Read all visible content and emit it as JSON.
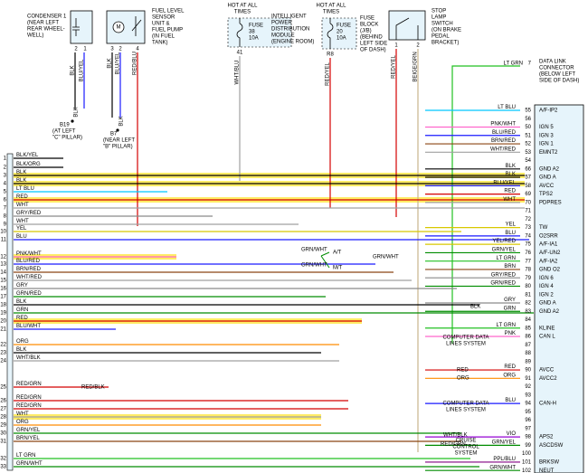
{
  "components": [
    {
      "name": [
        "CONDENSER 1",
        "(NEAR LEFT",
        "REAR WHEEL-",
        "WELL)"
      ],
      "pins": [
        "2",
        "1"
      ],
      "wires": [
        "BLK",
        "BLU/YEL"
      ]
    },
    {
      "name": [
        "FUEL LEVEL",
        "SENSOR",
        "UNIT &",
        "FUEL PUMP",
        "(IN FUEL",
        "TANK)"
      ],
      "symbol": "M",
      "pins": [
        "3",
        "2",
        "4"
      ],
      "wires": [
        "BLK",
        "BLU/YEL",
        "RED/BLU"
      ]
    },
    {
      "supply": [
        "HOT AT ALL",
        "TIMES"
      ],
      "fuse": [
        "FUSE",
        "38",
        "10A"
      ],
      "name": [
        "INTELLIGENT",
        "POWER",
        "DISTRIBUTION",
        "MODULE",
        "(ENGINE ROOM)"
      ],
      "pins": [
        "41"
      ],
      "wires": [
        "WHT/BLU"
      ]
    },
    {
      "supply": [
        "HOT AT ALL",
        "TIMES"
      ],
      "fuse": [
        "FUSE",
        "20",
        "10A"
      ],
      "name": [
        "FUSE",
        "BLOCK",
        "(J/B)",
        "(BEHIND",
        "LEFT SIDE",
        "OF DASH)"
      ],
      "pins": [
        "R8"
      ],
      "wires": [
        "RED/YEL"
      ]
    },
    {
      "name": [
        "STOP",
        "LAMP",
        "SWITCH",
        "(ON BRAKE",
        "PEDAL",
        "BRACKET)"
      ],
      "pins": [
        "1",
        "2"
      ],
      "wires": [
        "RED/YEL",
        "BEIGE/GRN"
      ]
    },
    {
      "name": [
        "DATA LINK",
        "CONNECTOR",
        "(BELOW LEFT",
        "SIDE OF DASH)"
      ],
      "pins": [
        "7"
      ],
      "wires": [
        "LT GRN"
      ]
    }
  ],
  "grounds": [
    {
      "id": "B19",
      "wire": "BLK",
      "location": [
        "(AT LEFT",
        "\"C\" PILLAR)"
      ]
    },
    {
      "id": "B7",
      "wire": "BLK",
      "location": [
        "(NEAR LEFT",
        "\"B\" PILLAR)"
      ]
    }
  ],
  "left_pins": [
    {
      "num": "1",
      "wire": "BLK/YEL"
    },
    {
      "num": "2",
      "wire": "BLK/ORG"
    },
    {
      "num": "3",
      "wire": "BLK"
    },
    {
      "num": "4",
      "wire": "BLK"
    },
    {
      "num": "5",
      "wire": "LT BLU"
    },
    {
      "num": "6",
      "wire": "RED"
    },
    {
      "num": "7",
      "wire": "WHT"
    },
    {
      "num": "8",
      "wire": "GRY/RED"
    },
    {
      "num": "9",
      "wire": "WHT"
    },
    {
      "num": "10",
      "wire": "YEL"
    },
    {
      "num": "11",
      "wire": "BLU"
    },
    {
      "num": "12",
      "wire": "PNK/WHT"
    },
    {
      "num": "13",
      "wire": "BLU/RED"
    },
    {
      "num": "14",
      "wire": "BRN/RED"
    },
    {
      "num": "15",
      "wire": "WHT/RED"
    },
    {
      "num": "16",
      "wire": "GRY"
    },
    {
      "num": "17",
      "wire": "GRN/RED"
    },
    {
      "num": "18",
      "wire": "BLK"
    },
    {
      "num": "19",
      "wire": "GRN"
    },
    {
      "num": "20",
      "wire": "RED"
    },
    {
      "num": "21",
      "wire": "BLU/WHT"
    },
    {
      "num": "22",
      "wire": "ORG"
    },
    {
      "num": "23",
      "wire": "BLK"
    },
    {
      "num": "24",
      "wire": "WHT/BLK"
    },
    {
      "num": "25",
      "wire": "RED/GRN"
    },
    {
      "num": "26",
      "wire": "RED/GRN"
    },
    {
      "num": "27",
      "wire": "RED/GRN"
    },
    {
      "num": "28",
      "wire": "WHT"
    },
    {
      "num": "29",
      "wire": "ORG"
    },
    {
      "num": "30",
      "wire": "GRN/YEL"
    },
    {
      "num": "31",
      "wire": "BRN/YEL"
    },
    {
      "num": "32",
      "wire": "LT GRN"
    },
    {
      "num": "33",
      "wire": "GRN/WHT"
    }
  ],
  "right_pins": [
    {
      "num": "55",
      "wire": "LT BLU",
      "func": "A/F-IP2"
    },
    {
      "num": "56"
    },
    {
      "num": "50",
      "wire": "PNK/WHT",
      "func": "IGN 5"
    },
    {
      "num": "51",
      "wire": "BLU/RED",
      "func": "IGN 3"
    },
    {
      "num": "52",
      "wire": "BRN/RED",
      "func": "IGN 1"
    },
    {
      "num": "53",
      "wire": "WHT/RED",
      "func": "EMNT2"
    },
    {
      "num": "54"
    },
    {
      "num": "66",
      "wire": "BLK",
      "func": "GND A2"
    },
    {
      "num": "57",
      "wire": "BLK",
      "func": "GND A"
    },
    {
      "num": "58",
      "wire": "BLU/YEL",
      "func": "AVCC"
    },
    {
      "num": "69",
      "wire": "RED",
      "func": "TPS2"
    },
    {
      "num": "70",
      "wire": "WHT",
      "func": "PDPRES"
    },
    {
      "num": "71"
    },
    {
      "num": "72"
    },
    {
      "num": "73",
      "wire": "YEL",
      "func": "TW"
    },
    {
      "num": "74",
      "wire": "BLU",
      "func": "O2SRR"
    },
    {
      "num": "75",
      "wire": "YEL/RED",
      "func": "A/F-IA1"
    },
    {
      "num": "76",
      "wire": "GRN/YEL",
      "func": "A/F-UN2"
    },
    {
      "num": "77",
      "wire": "LT GRN",
      "func": "A/F-IA2"
    },
    {
      "num": "78",
      "wire": "BRN",
      "func": "GND O2"
    },
    {
      "num": "79",
      "wire": "GRY/RED",
      "func": "IGN 6"
    },
    {
      "num": "80",
      "wire": "GRN/RED",
      "func": "IGN 4"
    },
    {
      "num": "81",
      "func": "IGN 2"
    },
    {
      "num": "82",
      "wire": "GRY",
      "func": "GND A"
    },
    {
      "num": "83",
      "wire": "GRN",
      "func": "GND A2"
    },
    {
      "num": "84"
    },
    {
      "num": "85",
      "wire": "LT GRN",
      "func": "KLINE"
    },
    {
      "num": "86",
      "wire": "PNK",
      "func": "CAN L"
    },
    {
      "num": "87"
    },
    {
      "num": "88"
    },
    {
      "num": "89"
    },
    {
      "num": "90",
      "wire": "RED",
      "func": "AVCC"
    },
    {
      "num": "91",
      "wire": "ORG",
      "func": "AVCC2"
    },
    {
      "num": "92"
    },
    {
      "num": "93"
    },
    {
      "num": "94",
      "wire": "BLU",
      "func": "CAN-H"
    },
    {
      "num": "95"
    },
    {
      "num": "96"
    },
    {
      "num": "97"
    },
    {
      "num": "98",
      "wire": "VIO",
      "func": "APS2"
    },
    {
      "num": "99",
      "wire": "GRN/YEL",
      "func": "ASCDSW"
    },
    {
      "num": "100"
    },
    {
      "num": "101",
      "wire": "PPL/BLU",
      "func": "BRKSW"
    },
    {
      "num": "102",
      "wire": "GRN/WHT",
      "func": "NEUT"
    }
  ],
  "labels": [
    [
      "GRN/WHT"
    ],
    [
      "A/T"
    ],
    [
      "GRN/WHT"
    ],
    [
      "M/T"
    ],
    [
      "GRN/WHT"
    ],
    [
      "BLK"
    ],
    [
      "COMPUTER DATA",
      "LINES SYSTEM"
    ],
    [
      "COMPUTER DATA",
      "LINES SYSTEM"
    ],
    [
      "CRUISE",
      "CONTROL",
      "SYSTEM"
    ],
    [
      "RED/BLK"
    ],
    [
      "WHT/BLK"
    ],
    [
      "RED/GRN"
    ],
    [
      "RED"
    ],
    [
      "ORG"
    ]
  ]
}
